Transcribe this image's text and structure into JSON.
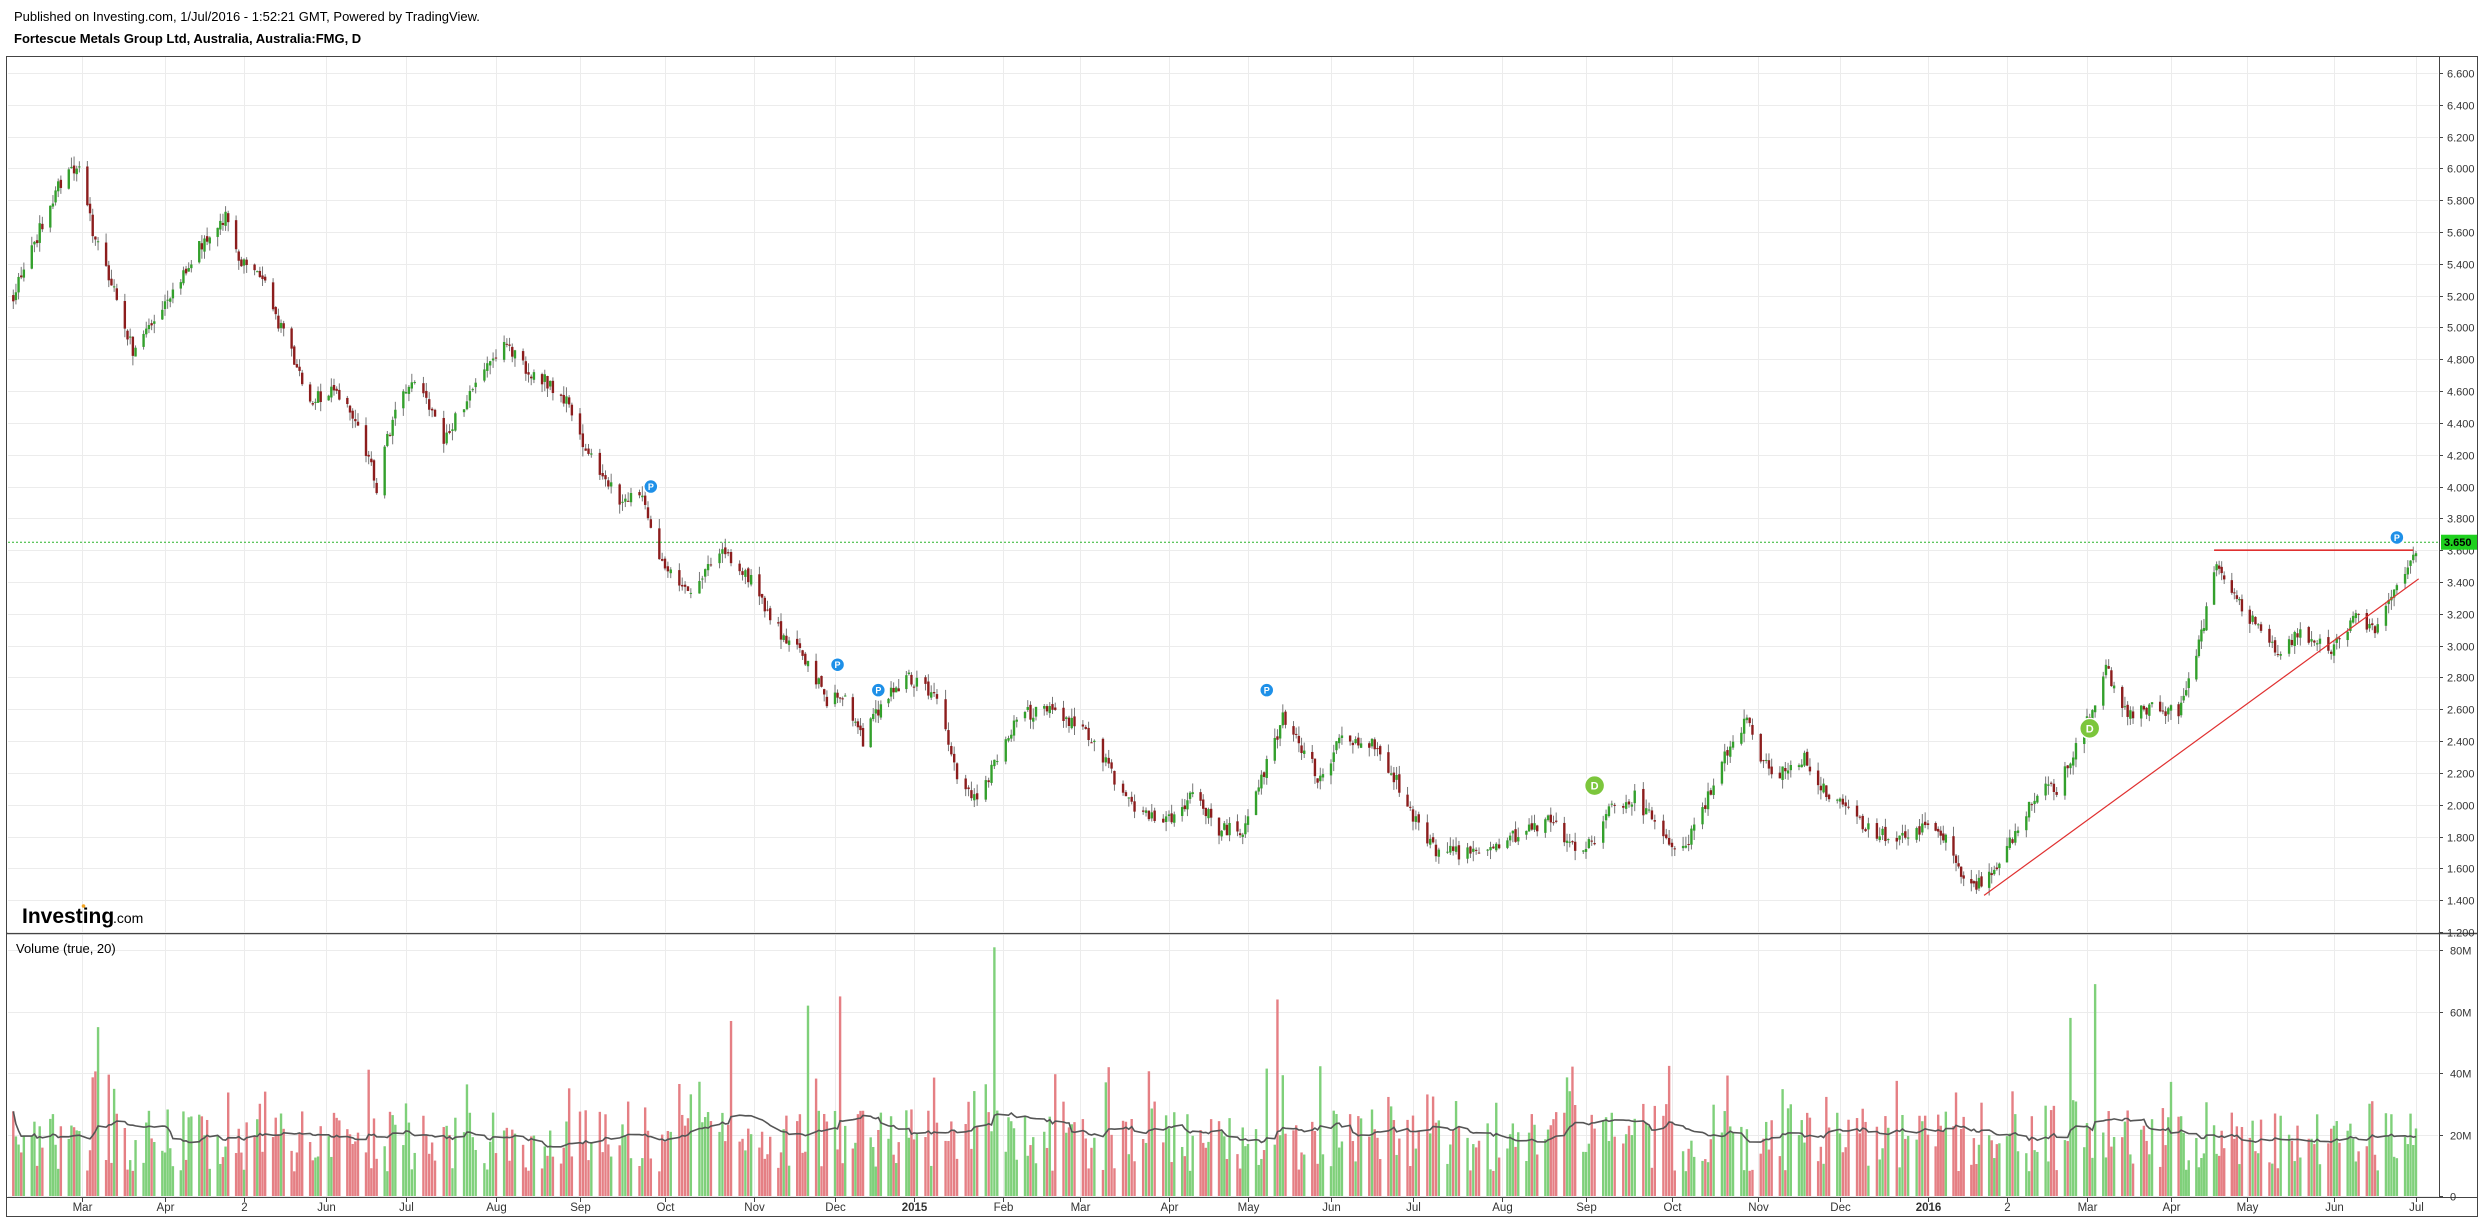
{
  "header": {
    "published": "Published on Investing.com, 1/Jul/2016 - 1:52:21 GMT, Powered by TradingView.",
    "symbol_title": "Fortescue Metals Group Ltd, Australia, Australia:FMG, D"
  },
  "logo": {
    "brand": "Investing",
    "suffix": ".com"
  },
  "volume_label": "Volume (true, 20)",
  "colors": {
    "up": "#33a02c",
    "down": "#8c1d1d",
    "vol_up": "#7fd07a",
    "vol_down": "#e57f84",
    "ma": "#555555",
    "trend": "#e03030",
    "last_price_bg": "#1ed01e",
    "last_price_line": "#2bb32b",
    "event_blue": "#1e90e8",
    "event_green": "#7cc63c"
  },
  "chart_data": [
    {
      "type": "candlestick",
      "title": "Fortescue Metals Group Ltd, Australia, Australia:FMG, D",
      "y_axis_position": "right",
      "ylim": [
        1.2,
        6.7
      ],
      "y_ticks": [
        "6.600",
        "6.400",
        "6.200",
        "6.000",
        "5.800",
        "5.600",
        "5.400",
        "5.200",
        "5.000",
        "4.800",
        "4.600",
        "4.400",
        "4.200",
        "4.000",
        "3.800",
        "3.600",
        "3.400",
        "3.200",
        "3.000",
        "2.800",
        "2.600",
        "2.400",
        "2.200",
        "2.000",
        "1.800",
        "1.600",
        "1.400",
        "1.200"
      ],
      "x_ticks": [
        "Mar",
        "Apr",
        "2",
        "Jun",
        "Jul",
        "Aug",
        "Sep",
        "Oct",
        "Nov",
        "Dec",
        "2015",
        "Feb",
        "Mar",
        "Apr",
        "May",
        "Jun",
        "Jul",
        "Aug",
        "Sep",
        "Oct",
        "Nov",
        "Dec",
        "2016",
        "2",
        "Mar",
        "Apr",
        "May",
        "Jun",
        "Jul"
      ],
      "bold_x_ticks": [
        "2015",
        "2016"
      ],
      "date_range": [
        "2014-02-01",
        "2016-07-01"
      ],
      "grid": true,
      "last_price": "3.650",
      "price_path": [
        [
          "2014-02-03",
          5.2
        ],
        [
          "2014-02-20",
          5.9
        ],
        [
          "2014-02-28",
          6.05
        ],
        [
          "2014-03-05",
          5.6
        ],
        [
          "2014-03-14",
          5.2
        ],
        [
          "2014-03-20",
          4.85
        ],
        [
          "2014-03-31",
          5.1
        ],
        [
          "2014-04-14",
          5.5
        ],
        [
          "2014-04-24",
          5.7
        ],
        [
          "2014-04-30",
          5.4
        ],
        [
          "2014-05-08",
          5.3
        ],
        [
          "2014-05-16",
          4.95
        ],
        [
          "2014-05-26",
          4.55
        ],
        [
          "2014-06-04",
          4.6
        ],
        [
          "2014-06-13",
          4.4
        ],
        [
          "2014-06-20",
          4.0
        ],
        [
          "2014-06-27",
          4.5
        ],
        [
          "2014-07-04",
          4.7
        ],
        [
          "2014-07-14",
          4.3
        ],
        [
          "2014-07-24",
          4.6
        ],
        [
          "2014-08-04",
          4.9
        ],
        [
          "2014-08-11",
          4.75
        ],
        [
          "2014-08-25",
          4.6
        ],
        [
          "2014-09-03",
          4.25
        ],
        [
          "2014-09-15",
          3.9
        ],
        [
          "2014-09-23",
          3.95
        ],
        [
          "2014-09-30",
          3.5
        ],
        [
          "2014-10-10",
          3.35
        ],
        [
          "2014-10-20",
          3.6
        ],
        [
          "2014-10-31",
          3.4
        ],
        [
          "2014-11-10",
          3.1
        ],
        [
          "2014-11-21",
          2.9
        ],
        [
          "2014-11-28",
          2.65
        ],
        [
          "2014-12-05",
          2.7
        ],
        [
          "2014-12-12",
          2.4
        ],
        [
          "2014-12-18",
          2.6
        ],
        [
          "2014-12-29",
          2.8
        ],
        [
          "2015-01-08",
          2.7
        ],
        [
          "2015-01-16",
          2.2
        ],
        [
          "2015-01-23",
          2.0
        ],
        [
          "2015-01-30",
          2.3
        ],
        [
          "2015-02-06",
          2.55
        ],
        [
          "2015-02-16",
          2.6
        ],
        [
          "2015-03-02",
          2.5
        ],
        [
          "2015-03-12",
          2.2
        ],
        [
          "2015-03-20",
          1.95
        ],
        [
          "2015-03-31",
          1.9
        ],
        [
          "2015-04-10",
          2.05
        ],
        [
          "2015-04-20",
          1.85
        ],
        [
          "2015-04-30",
          1.85
        ],
        [
          "2015-05-07",
          2.2
        ],
        [
          "2015-05-14",
          2.55
        ],
        [
          "2015-05-20",
          2.4
        ],
        [
          "2015-05-28",
          2.15
        ],
        [
          "2015-06-04",
          2.4
        ],
        [
          "2015-06-15",
          2.4
        ],
        [
          "2015-06-25",
          2.15
        ],
        [
          "2015-07-03",
          1.85
        ],
        [
          "2015-07-10",
          1.7
        ],
        [
          "2015-07-20",
          1.7
        ],
        [
          "2015-07-31",
          1.75
        ],
        [
          "2015-08-10",
          1.85
        ],
        [
          "2015-08-19",
          1.9
        ],
        [
          "2015-08-27",
          1.75
        ],
        [
          "2015-09-03",
          1.75
        ],
        [
          "2015-09-10",
          2.0
        ],
        [
          "2015-09-18",
          2.05
        ],
        [
          "2015-09-28",
          1.8
        ],
        [
          "2015-10-05",
          1.7
        ],
        [
          "2015-10-13",
          2.0
        ],
        [
          "2015-10-20",
          2.3
        ],
        [
          "2015-10-28",
          2.55
        ],
        [
          "2015-11-02",
          2.25
        ],
        [
          "2015-11-10",
          2.2
        ],
        [
          "2015-11-18",
          2.3
        ],
        [
          "2015-11-25",
          2.1
        ],
        [
          "2015-12-03",
          2.0
        ],
        [
          "2015-12-10",
          1.85
        ],
        [
          "2015-12-18",
          1.8
        ],
        [
          "2015-12-29",
          1.85
        ],
        [
          "2016-01-06",
          1.85
        ],
        [
          "2016-01-12",
          1.6
        ],
        [
          "2016-01-20",
          1.5
        ],
        [
          "2016-01-27",
          1.6
        ],
        [
          "2016-02-04",
          1.8
        ],
        [
          "2016-02-12",
          2.1
        ],
        [
          "2016-02-19",
          2.1
        ],
        [
          "2016-02-26",
          2.35
        ],
        [
          "2016-03-03",
          2.6
        ],
        [
          "2016-03-08",
          2.85
        ],
        [
          "2016-03-16",
          2.55
        ],
        [
          "2016-03-24",
          2.6
        ],
        [
          "2016-04-05",
          2.6
        ],
        [
          "2016-04-12",
          3.0
        ],
        [
          "2016-04-19",
          3.5
        ],
        [
          "2016-04-27",
          3.3
        ],
        [
          "2016-05-05",
          3.1
        ],
        [
          "2016-05-13",
          2.95
        ],
        [
          "2016-05-20",
          3.1
        ],
        [
          "2016-05-31",
          2.95
        ],
        [
          "2016-06-09",
          3.2
        ],
        [
          "2016-06-16",
          3.1
        ],
        [
          "2016-06-23",
          3.35
        ],
        [
          "2016-06-30",
          3.6
        ]
      ],
      "events": [
        {
          "date": "2014-09-26",
          "price": 4.0,
          "label": "P"
        },
        {
          "date": "2014-12-02",
          "price": 2.88,
          "label": "P"
        },
        {
          "date": "2014-12-18",
          "price": 2.72,
          "label": "P"
        },
        {
          "date": "2015-05-08",
          "price": 2.72,
          "label": "P"
        },
        {
          "date": "2015-09-04",
          "price": 2.12,
          "label": "D"
        },
        {
          "date": "2016-03-02",
          "price": 2.48,
          "label": "D"
        },
        {
          "date": "2016-06-24",
          "price": 3.68,
          "label": "P"
        }
      ],
      "resistance": {
        "from": "2016-04-18",
        "to": "2016-06-30",
        "price": 3.6
      },
      "trendline": {
        "from": [
          "2016-01-23",
          1.43
        ],
        "to": [
          "2016-07-02",
          3.42
        ]
      }
    },
    {
      "type": "bar",
      "title": "Volume (true, 20)",
      "ylim": [
        0,
        85
      ],
      "y_ticks": [
        "80M",
        "60M",
        "40M",
        "20M",
        "0"
      ],
      "tick_values": [
        80,
        60,
        40,
        20,
        0
      ],
      "units": "M",
      "ma_period": 20,
      "spike_days": [
        {
          "date": "2014-03-07",
          "value": 55
        },
        {
          "date": "2014-10-24",
          "value": 57
        },
        {
          "date": "2014-11-21",
          "value": 62
        },
        {
          "date": "2014-12-03",
          "value": 65
        },
        {
          "date": "2015-01-29",
          "value": 81
        },
        {
          "date": "2015-05-12",
          "value": 64
        },
        {
          "date": "2016-02-24",
          "value": 58
        },
        {
          "date": "2016-03-04",
          "value": 69
        }
      ]
    }
  ]
}
